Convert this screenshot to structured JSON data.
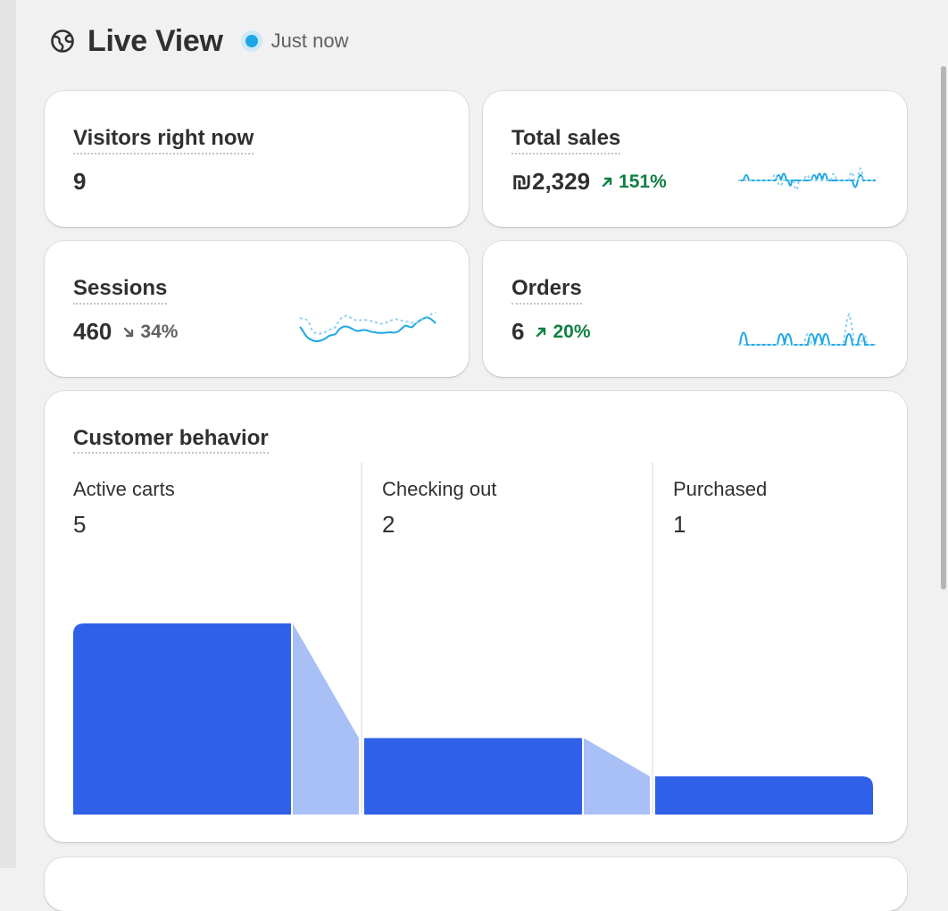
{
  "header": {
    "title": "Live View",
    "status": "Just now",
    "icon": "globe-icon"
  },
  "metrics": {
    "visitors": {
      "label": "Visitors right now",
      "value": "9"
    },
    "total_sales": {
      "label": "Total sales",
      "value": "₪2,329",
      "trend": "151%",
      "trend_direction": "up"
    },
    "sessions": {
      "label": "Sessions",
      "value": "460",
      "trend": "34%",
      "trend_direction": "down"
    },
    "orders": {
      "label": "Orders",
      "value": "6",
      "trend": "20%",
      "trend_direction": "up"
    }
  },
  "customer_behavior": {
    "title": "Customer behavior",
    "stages": [
      {
        "label": "Active carts",
        "value": "5"
      },
      {
        "label": "Checking out",
        "value": "2"
      },
      {
        "label": "Purchased",
        "value": "1"
      }
    ]
  },
  "colors": {
    "accent": "#1ea7e4",
    "funnel_bar": "#3060e8",
    "funnel_connector": "#a9c0f7",
    "trend_up": "#108043",
    "trend_down": "#616161"
  }
}
